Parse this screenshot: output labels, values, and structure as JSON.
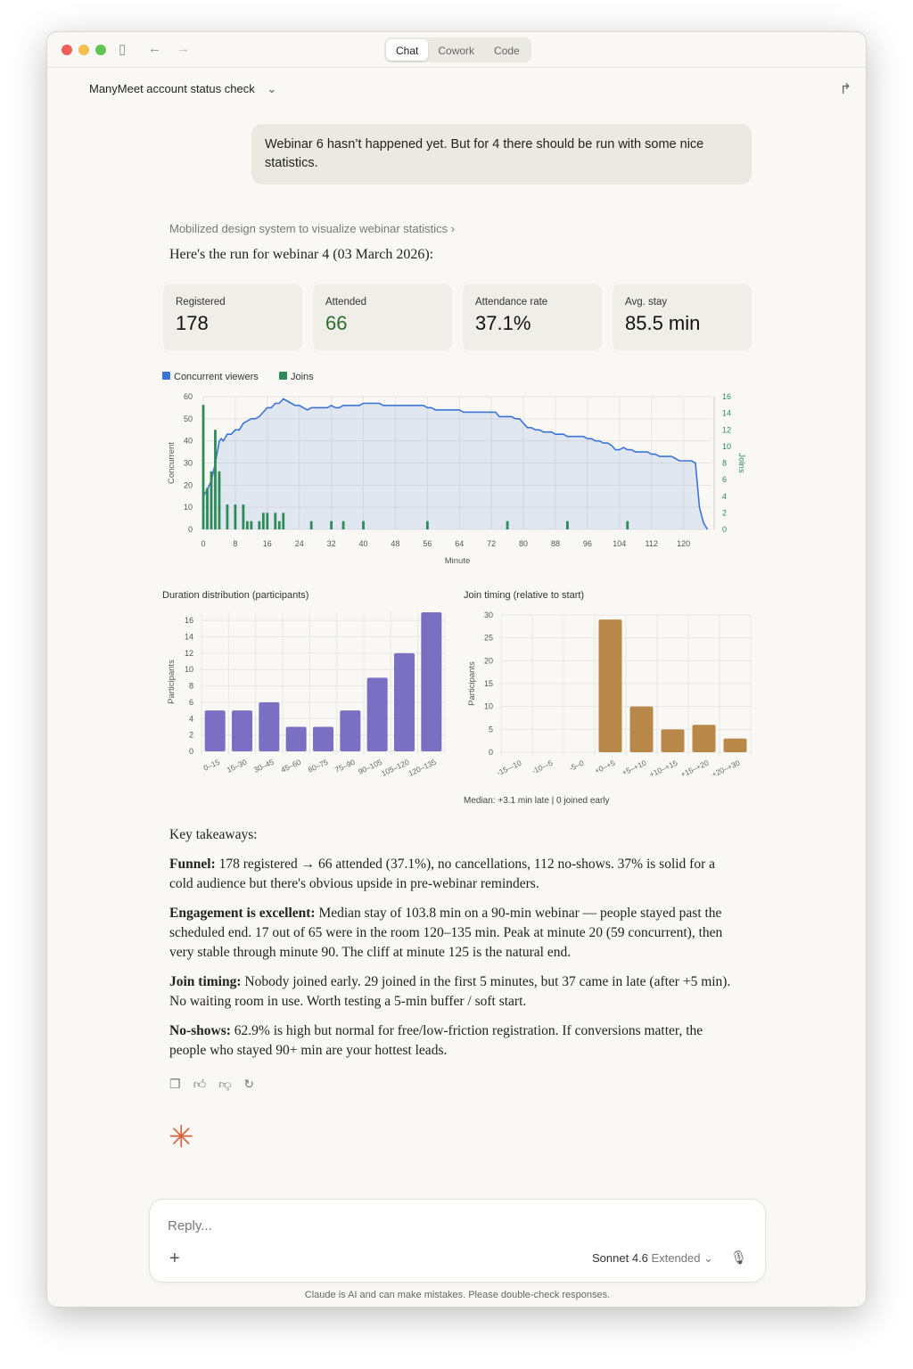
{
  "window": {
    "tabs": [
      "Chat",
      "Cowork",
      "Code"
    ],
    "active_tab": "Chat"
  },
  "header": {
    "title": "ManyMeet account status check"
  },
  "user_message": "Webinar 6 hasn’t happened yet. But for 4 there should be run with some nice statistics.",
  "assistant": {
    "thought": "Mobilized design system to visualize webinar statistics",
    "intro": "Here's the run for webinar 4 (03 March 2026):",
    "stats": [
      {
        "label": "Registered",
        "value": "178"
      },
      {
        "label": "Attended",
        "value": "66"
      },
      {
        "label": "Attendance rate",
        "value": "37.1%"
      },
      {
        "label": "Avg. stay",
        "value": "85.5 min"
      }
    ],
    "takeaways_heading": "Key takeaways:",
    "takeaways": [
      {
        "bold": "Funnel:",
        "text": " 178 registered → 66 attended (37.1%), no cancellations, 112 no-shows. 37% is solid for a cold audience but there's obvious upside in pre-webinar reminders."
      },
      {
        "bold": "Engagement is excellent:",
        "text": " Median stay of 103.8 min on a 90-min webinar — people stayed past the scheduled end. 17 out of 65 were in the room 120–135 min. Peak at minute 20 (59 concurrent), then very stable through minute 90. The cliff at minute 125 is the natural end."
      },
      {
        "bold": "Join timing:",
        "text": " Nobody joined early. 29 joined in the first 5 minutes, but 37 came in late (after +5 min). No waiting room in use. Worth testing a 5-min buffer / soft start."
      },
      {
        "bold": "No-shows:",
        "text": " 62.9% is high but normal for free/low-friction registration. If conversions matter, the people who stayed 90+ min are your hottest leads."
      }
    ]
  },
  "composer": {
    "placeholder": "Reply...",
    "model": "Sonnet 4.6",
    "mode": "Extended"
  },
  "disclaimer": "Claude is AI and can make mistakes. Please double-check responses.",
  "chart_data": [
    {
      "type": "line+bar",
      "legend": [
        "Concurrent viewers",
        "Joins"
      ],
      "legend_placement": "top-left",
      "xlabel": "Minute",
      "ylabel": "Concurrent",
      "y2label": "Joins",
      "xlim": [
        0,
        127
      ],
      "ylim": [
        0,
        60
      ],
      "y2lim": [
        0,
        16
      ],
      "xticks": [
        0,
        8,
        16,
        24,
        32,
        40,
        48,
        56,
        64,
        72,
        80,
        88,
        96,
        104,
        112,
        120
      ],
      "yticks": [
        0,
        10,
        20,
        30,
        40,
        50,
        60
      ],
      "y2ticks": [
        0,
        2,
        4,
        6,
        8,
        10,
        12,
        14,
        16
      ],
      "colors": {
        "concurrent": "#3b74d9",
        "joins": "#2e8b57"
      },
      "concurrent": [
        [
          0,
          15
        ],
        [
          1,
          18
        ],
        [
          2,
          22
        ],
        [
          3,
          30
        ],
        [
          4,
          40
        ],
        [
          4.5,
          41
        ],
        [
          5,
          40
        ],
        [
          6,
          43
        ],
        [
          7,
          43
        ],
        [
          8,
          45
        ],
        [
          9,
          45
        ],
        [
          10,
          48
        ],
        [
          11,
          49
        ],
        [
          12,
          50
        ],
        [
          13,
          50
        ],
        [
          14,
          51
        ],
        [
          15,
          53
        ],
        [
          16,
          55
        ],
        [
          17,
          55
        ],
        [
          18,
          57
        ],
        [
          19,
          57
        ],
        [
          20,
          59
        ],
        [
          21,
          58
        ],
        [
          22,
          57
        ],
        [
          23,
          56
        ],
        [
          24,
          56
        ],
        [
          25,
          55
        ],
        [
          26,
          54
        ],
        [
          27,
          55
        ],
        [
          31,
          55
        ],
        [
          32,
          56
        ],
        [
          33,
          55
        ],
        [
          34,
          55
        ],
        [
          35,
          56
        ],
        [
          39,
          56
        ],
        [
          40,
          57
        ],
        [
          44,
          57
        ],
        [
          45,
          56
        ],
        [
          55,
          56
        ],
        [
          56,
          55
        ],
        [
          57,
          55
        ],
        [
          58,
          54
        ],
        [
          64,
          54
        ],
        [
          65,
          53
        ],
        [
          73,
          53
        ],
        [
          74,
          51
        ],
        [
          77,
          51
        ],
        [
          78,
          50
        ],
        [
          79,
          50
        ],
        [
          81,
          46
        ],
        [
          82,
          46
        ],
        [
          83,
          45
        ],
        [
          84,
          45
        ],
        [
          85,
          44
        ],
        [
          87,
          44
        ],
        [
          88,
          43
        ],
        [
          90,
          43
        ],
        [
          91,
          42
        ],
        [
          95,
          42
        ],
        [
          96,
          41
        ],
        [
          97,
          41
        ],
        [
          98,
          40
        ],
        [
          99,
          40
        ],
        [
          100,
          39
        ],
        [
          101,
          39
        ],
        [
          102,
          38
        ],
        [
          103,
          36
        ],
        [
          104,
          36
        ],
        [
          105,
          37
        ],
        [
          106,
          36
        ],
        [
          107,
          36
        ],
        [
          108,
          35
        ],
        [
          111,
          35
        ],
        [
          112,
          34
        ],
        [
          113,
          34
        ],
        [
          114,
          33
        ],
        [
          117,
          33
        ],
        [
          118,
          32
        ],
        [
          119,
          31
        ],
        [
          122,
          31
        ],
        [
          123,
          30
        ],
        [
          124,
          10
        ],
        [
          125,
          3
        ],
        [
          126,
          0
        ]
      ],
      "joins": [
        [
          0,
          15
        ],
        [
          1,
          5
        ],
        [
          2,
          7
        ],
        [
          3,
          12
        ],
        [
          4,
          7
        ],
        [
          6,
          3
        ],
        [
          8,
          3
        ],
        [
          10,
          3
        ],
        [
          11,
          1
        ],
        [
          12,
          1
        ],
        [
          14,
          1
        ],
        [
          15,
          2
        ],
        [
          16,
          2
        ],
        [
          18,
          2
        ],
        [
          19,
          1
        ],
        [
          20,
          2
        ],
        [
          27,
          1
        ],
        [
          32,
          1
        ],
        [
          35,
          1
        ],
        [
          40,
          1
        ],
        [
          56,
          1
        ],
        [
          76,
          1
        ],
        [
          91,
          1
        ],
        [
          106,
          1
        ]
      ]
    },
    {
      "type": "bar",
      "title": "Duration distribution (participants)",
      "ylabel": "Participants",
      "categories": [
        "0–15",
        "15–30",
        "30–45",
        "45–60",
        "60–75",
        "75–90",
        "90–105",
        "105–120",
        "120–135"
      ],
      "values": [
        5,
        5,
        6,
        3,
        3,
        5,
        9,
        12,
        17
      ],
      "ylim": [
        0,
        17
      ],
      "yticks": [
        0,
        2,
        4,
        6,
        8,
        10,
        12,
        14,
        16
      ],
      "color": "#7b6fc4"
    },
    {
      "type": "bar",
      "title": "Join timing (relative to start)",
      "ylabel": "Participants",
      "categories": [
        "-15–-10",
        "-10–-5",
        "-5–0",
        "+0–+5",
        "+5–+10",
        "+10–+15",
        "+15–+20",
        "+20–+30"
      ],
      "values": [
        0,
        0,
        0,
        29,
        10,
        5,
        6,
        3
      ],
      "ylim": [
        0,
        30
      ],
      "yticks": [
        0,
        5,
        10,
        15,
        20,
        25,
        30
      ],
      "color": "#b8884a",
      "note": "Median: +3.1 min late  |  0 joined early"
    }
  ]
}
